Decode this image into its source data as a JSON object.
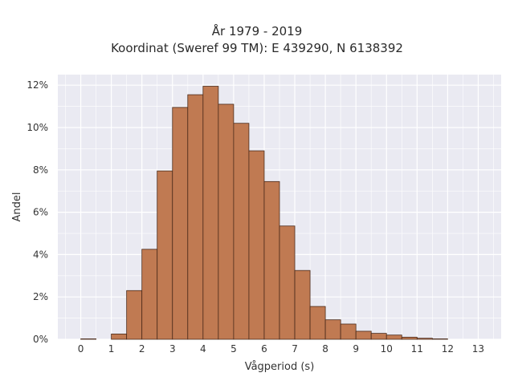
{
  "chart_data": {
    "type": "bar",
    "title": [
      "År 1979 - 2019",
      "Koordinat (Sweref 99 TM): E 439290, N 6138392"
    ],
    "xlabel": "Vågperiod (s)",
    "ylabel": "Andel",
    "x_ticks": [
      "0",
      "1",
      "2",
      "3",
      "4",
      "5",
      "6",
      "7",
      "8",
      "9",
      "10",
      "11",
      "12",
      "13"
    ],
    "y_ticks": [
      "0%",
      "2%",
      "4%",
      "6%",
      "8%",
      "10%",
      "12%"
    ],
    "xlim": [
      -0.75,
      13.75
    ],
    "ylim": [
      0,
      12.5
    ],
    "bin_width": 0.5,
    "bin_starts": [
      0,
      0.5,
      1,
      1.5,
      2,
      2.5,
      3,
      3.5,
      4,
      4.5,
      5,
      5.5,
      6,
      6.5,
      7,
      7.5,
      8,
      8.5,
      9,
      9.5,
      10,
      10.5,
      11,
      11.5,
      12,
      12.5
    ],
    "values": [
      0.02,
      0.0,
      0.25,
      2.3,
      4.25,
      7.95,
      10.95,
      11.55,
      11.95,
      11.1,
      10.2,
      8.9,
      7.45,
      5.35,
      3.25,
      1.55,
      0.92,
      0.72,
      0.38,
      0.28,
      0.2,
      0.1,
      0.05,
      0.02,
      0.0,
      0.0
    ],
    "grid": true,
    "colors": {
      "bar_fill": "#c07a52",
      "bar_edge": "#4a2a1a",
      "plot_bg": "#eaeaf2",
      "grid": "#ffffff"
    }
  }
}
